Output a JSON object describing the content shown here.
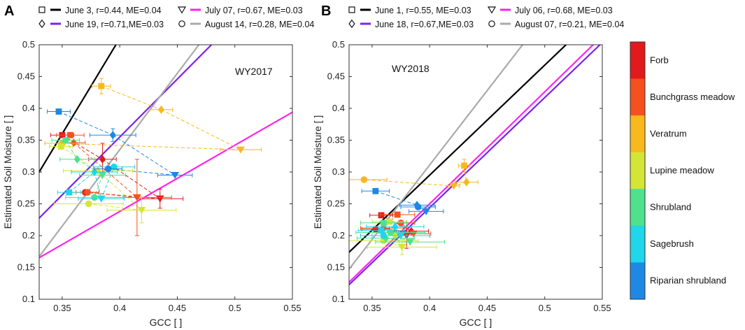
{
  "figure": {
    "colorbar": {
      "categories": [
        {
          "label": "Forb",
          "color": "#e31a1c"
        },
        {
          "label": "Bunchgrass meadow",
          "color": "#f4511e"
        },
        {
          "label": "Veratrum",
          "color": "#f9b81c"
        },
        {
          "label": "Lupine meadow",
          "color": "#d4e635"
        },
        {
          "label": "Shrubland",
          "color": "#4ee28e"
        },
        {
          "label": "Sagebrush",
          "color": "#1fd6ea"
        },
        {
          "label": "Riparian shrubland",
          "color": "#1e88e5"
        }
      ]
    }
  },
  "chart_data": [
    {
      "panel": "A",
      "type": "scatter",
      "annotation": "WY2017",
      "xlabel": "GCC [ ]",
      "ylabel": "Estimated Soil Moisture [ ]",
      "xlim": [
        0.33,
        0.55
      ],
      "ylim": [
        0.1,
        0.5
      ],
      "xticks": [
        0.35,
        0.4,
        0.45,
        0.5,
        0.55
      ],
      "xtick_labels": [
        "0.35",
        "0.4",
        "0.45",
        "0.5",
        "0.55"
      ],
      "yticks": [
        0.1,
        0.15,
        0.2,
        0.25,
        0.3,
        0.35,
        0.4,
        0.45,
        0.5
      ],
      "ytick_labels": [
        "0.1",
        "0.15",
        "0.2",
        "0.25",
        "0.3",
        "0.35",
        "0.4",
        "0.45",
        "0.5"
      ],
      "legend": [
        {
          "marker": "square",
          "line_color": "#000000",
          "text": "June 3, r=0.44, ME=0.04"
        },
        {
          "marker": "triangle-down",
          "line_color": "#ff22ee",
          "text": "July 07, r=0.67, ME=0.03"
        },
        {
          "marker": "diamond",
          "line_color": "#7b22ee",
          "text": "June 19, r=0.71,ME=0.03"
        },
        {
          "marker": "circle",
          "line_color": "#aaaaaa",
          "text": "August 14, r=0.28, ME=0.04"
        }
      ],
      "fit_lines": [
        {
          "name": "June 3",
          "color": "#000000",
          "slope": 3.0,
          "intercept": -0.69
        },
        {
          "name": "June 19",
          "color": "#7b22ee",
          "slope": 1.82,
          "intercept": -0.373
        },
        {
          "name": "July 07",
          "color": "#ff22ee",
          "slope": 1.04,
          "intercept": -0.178
        },
        {
          "name": "August 14",
          "color": "#aaaaaa",
          "slope": 2.4,
          "intercept": -0.625
        }
      ],
      "series": [
        {
          "category": "Forb",
          "points": [
            {
              "m": "square",
              "x": 0.35,
              "y": 0.358,
              "ex": 0.01
            },
            {
              "m": "diamond",
              "x": 0.385,
              "y": 0.32,
              "ex": 0.012,
              "ey": 0.025
            },
            {
              "m": "triangle-down",
              "x": 0.435,
              "y": 0.258,
              "ex": 0.02,
              "ey": 0.015
            },
            {
              "m": "circle",
              "x": 0.37,
              "y": 0.268,
              "ex": 0.012
            }
          ]
        },
        {
          "category": "Bunchgrass meadow",
          "points": [
            {
              "m": "square",
              "x": 0.357,
              "y": 0.358,
              "ex": 0.012
            },
            {
              "m": "diamond",
              "x": 0.36,
              "y": 0.346,
              "ex": 0.01
            },
            {
              "m": "triangle-down",
              "x": 0.415,
              "y": 0.26,
              "ex": 0.03,
              "ey": 0.06
            },
            {
              "m": "circle",
              "x": 0.372,
              "y": 0.268,
              "ex": 0.01
            }
          ]
        },
        {
          "category": "Veratrum",
          "points": [
            {
              "m": "square",
              "x": 0.384,
              "y": 0.435,
              "ex": 0.008,
              "ey": 0.012
            },
            {
              "m": "diamond",
              "x": 0.436,
              "y": 0.398,
              "ex": 0.01
            },
            {
              "m": "triangle-down",
              "x": 0.505,
              "y": 0.335,
              "ex": 0.018
            },
            {
              "m": "circle",
              "x": 0.35,
              "y": 0.345,
              "ex": 0.015
            }
          ]
        },
        {
          "category": "Lupine meadow",
          "points": [
            {
              "m": "square",
              "x": 0.349,
              "y": 0.34,
              "ex": 0.01
            },
            {
              "m": "diamond",
              "x": 0.381,
              "y": 0.302,
              "ex": 0.03
            },
            {
              "m": "triangle-down",
              "x": 0.419,
              "y": 0.24,
              "ex": 0.03,
              "ey": 0.02
            },
            {
              "m": "circle",
              "x": 0.373,
              "y": 0.25,
              "ex": 0.03
            }
          ]
        },
        {
          "category": "Shrubland",
          "points": [
            {
              "m": "square",
              "x": 0.353,
              "y": 0.35,
              "ex": 0.012
            },
            {
              "m": "diamond",
              "x": 0.363,
              "y": 0.32,
              "ex": 0.015
            },
            {
              "m": "triangle-down",
              "x": 0.385,
              "y": 0.295,
              "ex": 0.02
            },
            {
              "m": "circle",
              "x": 0.378,
              "y": 0.26,
              "ex": 0.025
            }
          ]
        },
        {
          "category": "Sagebrush",
          "points": [
            {
              "m": "square",
              "x": 0.356,
              "y": 0.268,
              "ex": 0.01
            },
            {
              "m": "diamond",
              "x": 0.378,
              "y": 0.3,
              "ex": 0.02
            },
            {
              "m": "triangle-down",
              "x": 0.384,
              "y": 0.258,
              "ex": 0.02
            },
            {
              "m": "circle",
              "x": 0.395,
              "y": 0.308,
              "ex": 0.018
            }
          ]
        },
        {
          "category": "Riparian shrubland",
          "points": [
            {
              "m": "square",
              "x": 0.347,
              "y": 0.395,
              "ex": 0.01
            },
            {
              "m": "diamond",
              "x": 0.394,
              "y": 0.358,
              "ex": 0.02,
              "ey": 0.01
            },
            {
              "m": "triangle-down",
              "x": 0.448,
              "y": 0.295,
              "ex": 0.015
            },
            {
              "m": "circle",
              "x": 0.39,
              "y": 0.305,
              "ex": 0.012
            }
          ]
        }
      ]
    },
    {
      "panel": "B",
      "type": "scatter",
      "annotation": "WY2018",
      "xlabel": "GCC [ ]",
      "ylabel": "Estimated Soil Moisture [ ]",
      "xlim": [
        0.33,
        0.55
      ],
      "ylim": [
        0.1,
        0.5
      ],
      "xticks": [
        0.35,
        0.4,
        0.45,
        0.5,
        0.55
      ],
      "xtick_labels": [
        "0.35",
        "0.4",
        "0.45",
        "0.5",
        "0.55"
      ],
      "yticks": [
        0.1,
        0.15,
        0.2,
        0.25,
        0.3,
        0.35,
        0.4,
        0.45,
        0.5
      ],
      "ytick_labels": [
        "0.1",
        "0.15",
        "0.2",
        "0.25",
        "0.3",
        "0.35",
        "0.4",
        "0.45",
        "0.5"
      ],
      "legend": [
        {
          "marker": "square",
          "line_color": "#000000",
          "text": "June 1, r=0.55, ME=0.03"
        },
        {
          "marker": "triangle-down",
          "line_color": "#ff22ee",
          "text": "July 06, r=0.68, ME=0.03"
        },
        {
          "marker": "diamond",
          "line_color": "#7b22ee",
          "text": "June 18, r=0.67,ME=0.03"
        },
        {
          "marker": "circle",
          "line_color": "#aaaaaa",
          "text": "August 07, r=0.21, ME=0.04"
        }
      ],
      "fit_lines": [
        {
          "name": "June 1",
          "color": "#000000",
          "slope": 1.73,
          "intercept": -0.397
        },
        {
          "name": "June 18",
          "color": "#7b22ee",
          "slope": 1.73,
          "intercept": -0.448
        },
        {
          "name": "July 06",
          "color": "#ff22ee",
          "slope": 1.76,
          "intercept": -0.454
        },
        {
          "name": "August 07",
          "color": "#aaaaaa",
          "slope": 2.34,
          "intercept": -0.625
        }
      ],
      "series": [
        {
          "category": "Forb",
          "points": [
            {
              "m": "square",
              "x": 0.358,
              "y": 0.232,
              "ex": 0.01
            },
            {
              "m": "diamond",
              "x": 0.384,
              "y": 0.207,
              "ex": 0.015
            },
            {
              "m": "triangle-down",
              "x": 0.38,
              "y": 0.2,
              "ex": 0.02,
              "ey": 0.02
            },
            {
              "m": "circle",
              "x": 0.353,
              "y": 0.21,
              "ex": 0.012
            }
          ]
        },
        {
          "category": "Bunchgrass meadow",
          "points": [
            {
              "m": "square",
              "x": 0.372,
              "y": 0.233,
              "ex": 0.015
            },
            {
              "m": "diamond",
              "x": 0.36,
              "y": 0.212,
              "ex": 0.02
            },
            {
              "m": "triangle-down",
              "x": 0.386,
              "y": 0.203,
              "ex": 0.015
            },
            {
              "m": "circle",
              "x": 0.375,
              "y": 0.22,
              "ex": 0.012
            }
          ]
        },
        {
          "category": "Veratrum",
          "points": [
            {
              "m": "square",
              "x": 0.43,
              "y": 0.31,
              "ex": 0.005,
              "ey": 0.01
            },
            {
              "m": "diamond",
              "x": 0.432,
              "y": 0.284,
              "ex": 0.01
            },
            {
              "m": "triangle-down",
              "x": 0.421,
              "y": 0.278,
              "ex": 0.005
            },
            {
              "m": "circle",
              "x": 0.343,
              "y": 0.288,
              "ex": 0.02
            }
          ]
        },
        {
          "category": "Lupine meadow",
          "points": [
            {
              "m": "square",
              "x": 0.365,
              "y": 0.222,
              "ex": 0.015
            },
            {
              "m": "diamond",
              "x": 0.37,
              "y": 0.2,
              "ex": 0.03
            },
            {
              "m": "triangle-down",
              "x": 0.376,
              "y": 0.182,
              "ex": 0.03,
              "ey": 0.012
            },
            {
              "m": "circle",
              "x": 0.36,
              "y": 0.192,
              "ex": 0.03
            }
          ]
        },
        {
          "category": "Shrubland",
          "points": [
            {
              "m": "square",
              "x": 0.36,
              "y": 0.22,
              "ex": 0.02
            },
            {
              "m": "diamond",
              "x": 0.362,
              "y": 0.196,
              "ex": 0.025
            },
            {
              "m": "triangle-down",
              "x": 0.383,
              "y": 0.19,
              "ex": 0.03
            },
            {
              "m": "circle",
              "x": 0.366,
              "y": 0.205,
              "ex": 0.03
            }
          ]
        },
        {
          "category": "Sagebrush",
          "points": [
            {
              "m": "square",
              "x": 0.358,
              "y": 0.208,
              "ex": 0.02
            },
            {
              "m": "diamond",
              "x": 0.37,
              "y": 0.214,
              "ex": 0.025
            },
            {
              "m": "triangle-down",
              "x": 0.375,
              "y": 0.2,
              "ex": 0.025
            },
            {
              "m": "circle",
              "x": 0.36,
              "y": 0.2,
              "ex": 0.02
            }
          ]
        },
        {
          "category": "Riparian shrubland",
          "points": [
            {
              "m": "square",
              "x": 0.353,
              "y": 0.27,
              "ex": 0.012
            },
            {
              "m": "diamond",
              "x": 0.389,
              "y": 0.248,
              "ex": 0.015
            },
            {
              "m": "triangle-down",
              "x": 0.397,
              "y": 0.238,
              "ex": 0.015
            },
            {
              "m": "circle",
              "x": 0.39,
              "y": 0.245,
              "ex": 0.015
            }
          ]
        }
      ]
    }
  ]
}
